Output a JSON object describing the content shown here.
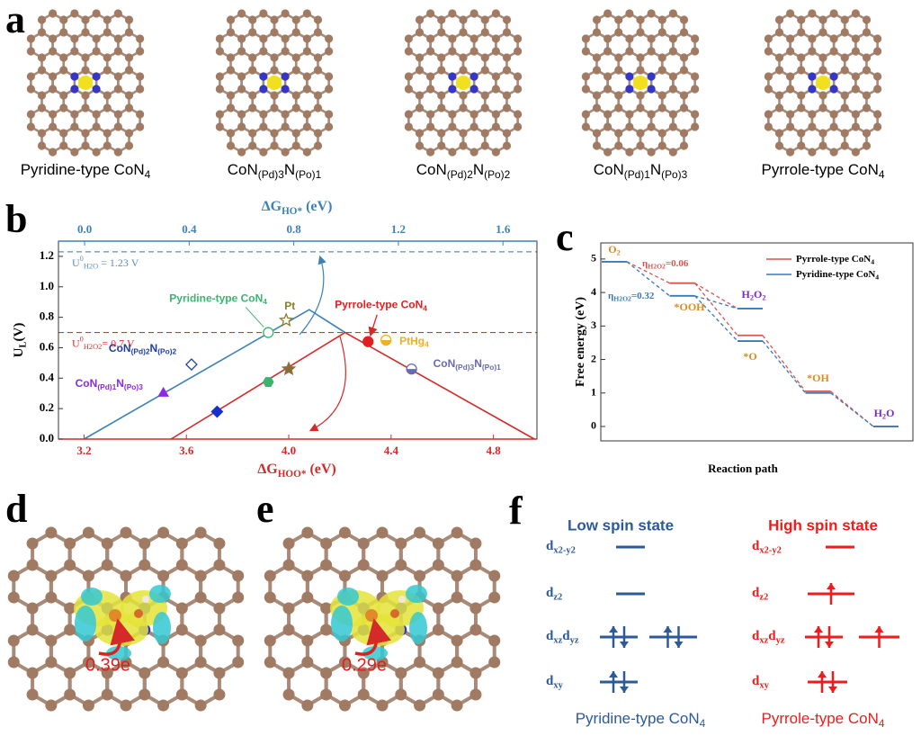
{
  "panel_labels": [
    "a",
    "b",
    "c",
    "d",
    "e",
    "f"
  ],
  "panel_a": {
    "structures": [
      [
        {
          "text": "Pyridine-type CoN"
        },
        {
          "text": "4",
          "sub": true
        }
      ],
      [
        {
          "text": "CoN"
        },
        {
          "text": "(Pd)3",
          "sub": true
        },
        {
          "text": "N"
        },
        {
          "text": "(Po)1",
          "sub": true
        }
      ],
      [
        {
          "text": "CoN"
        },
        {
          "text": "(Pd)2",
          "sub": true
        },
        {
          "text": "N"
        },
        {
          "text": "(Po)2",
          "sub": true
        }
      ],
      [
        {
          "text": "CoN"
        },
        {
          "text": "(Pd)1",
          "sub": true
        },
        {
          "text": "N"
        },
        {
          "text": "(Po)3",
          "sub": true
        }
      ],
      [
        {
          "text": "Pyrrole-type CoN"
        },
        {
          "text": "4",
          "sub": true
        }
      ]
    ]
  },
  "chart_data": [
    {
      "type": "scatter",
      "x_label": [
        {
          "text": "ΔG"
        },
        {
          "text": "HOO*",
          "sub": true
        },
        {
          "text": " (eV)"
        }
      ],
      "x2_label": [
        {
          "text": "ΔG"
        },
        {
          "text": "HO*",
          "sub": true
        },
        {
          "text": " (eV)"
        }
      ],
      "y_label": [
        {
          "text": "U"
        },
        {
          "text": "L",
          "sub": true
        },
        {
          "text": "(V)"
        }
      ],
      "xlim": [
        3.1,
        4.97
      ],
      "xticks": [
        3.2,
        3.6,
        {
          "value": 4,
          "label": "4.0"
        },
        4.4,
        4.8
      ],
      "x2lim": [
        -0.1,
        1.73
      ],
      "x2ticks": [
        {
          "value": 0,
          "label": "0.0"
        },
        0.4,
        0.8,
        1.2,
        1.6
      ],
      "ylim": [
        0,
        1.3
      ],
      "yticks": [
        {
          "value": 0,
          "label": "0.0"
        },
        0.2,
        0.4,
        0.6,
        0.8,
        {
          "value": 1,
          "label": "1.0"
        },
        1.2
      ],
      "lines": [
        {
          "color": "#3d82b5",
          "x": [
            3.2,
            4.08,
            4.22
          ],
          "values": [
            0,
            0.85,
            0.7
          ]
        },
        {
          "color": "#d42a2a",
          "x": [
            3.54,
            4.22,
            4.96
          ],
          "values": [
            0,
            0.7,
            0
          ]
        }
      ],
      "reference_lines": [
        {
          "value": 1.23,
          "color": "#5b8fbf",
          "label": [
            {
              "text": "U"
            },
            {
              "text": "0",
              "sup": true
            },
            {
              "text": "H2O",
              "sub": true
            },
            {
              "text": " = 1.23 V"
            }
          ]
        },
        {
          "value": 0.7,
          "color": "#e03030",
          "label": [
            {
              "text": "U"
            },
            {
              "text": "0",
              "sup": true
            },
            {
              "text": "H2O2",
              "sub": true
            },
            {
              "text": "= 0.7 V"
            }
          ]
        }
      ],
      "points": [
        {
          "label": [
            {
              "text": "Pyridine-type CoN"
            },
            {
              "text": "4",
              "sub": true
            }
          ],
          "x": 3.92,
          "value": 0.7,
          "marker": "circle-open",
          "color": "#3cb371"
        },
        {
          "label": [
            {
              "text": "Pt"
            }
          ],
          "x": 3.99,
          "value": 0.78,
          "marker": "star-open",
          "color": "#8b7d2a"
        },
        {
          "label": [
            {
              "text": "CoN"
            },
            {
              "text": "(Pd)2",
              "sub": true
            },
            {
              "text": "N"
            },
            {
              "text": "(Po)2",
              "sub": true
            }
          ],
          "x": 3.62,
          "value": 0.49,
          "marker": "diamond-open",
          "color": "#1f3fa0"
        },
        {
          "label": [
            {
              "text": "CoN"
            },
            {
              "text": "(Pd)1",
              "sub": true
            },
            {
              "text": "N"
            },
            {
              "text": "(Po)3",
              "sub": true
            }
          ],
          "x": 3.51,
          "value": 0.3,
          "marker": "triangle",
          "color": "#8a2be2"
        },
        {
          "x": 3.72,
          "value": 0.18,
          "marker": "diamond",
          "color": "#1430d0"
        },
        {
          "x": 3.92,
          "value": 0.375,
          "marker": "hexagon",
          "color": "#3cb371"
        },
        {
          "x": 4.0,
          "value": 0.46,
          "marker": "star",
          "color": "#8b6d3a"
        },
        {
          "label": [
            {
              "text": "Pyrrole-type CoN"
            },
            {
              "text": "4",
              "sub": true
            }
          ],
          "x": 4.31,
          "value": 0.64,
          "marker": "circle",
          "color": "#e02020"
        },
        {
          "label": [
            {
              "text": "PtHg"
            },
            {
              "text": "4",
              "sub": true
            }
          ],
          "x": 4.38,
          "value": 0.65,
          "marker": "half",
          "color": "#f0b020"
        },
        {
          "label": [
            {
              "text": "CoN"
            },
            {
              "text": "(Pd)3",
              "sub": true
            },
            {
              "text": "N"
            },
            {
              "text": "(Po)1",
              "sub": true
            }
          ],
          "x": 4.48,
          "value": 0.46,
          "marker": "half",
          "color": "#6a6ab0"
        }
      ]
    },
    {
      "type": "step",
      "x_label": "Reaction path",
      "y_label": "Free energy (eV)",
      "ylim": [
        -0.43,
        5.48
      ],
      "yticks": [
        0,
        1,
        2,
        3,
        4,
        5
      ],
      "categories": [
        [
          {
            "text": "O"
          },
          {
            "text": "2",
            "sub": true
          }
        ],
        [
          {
            "text": "*OOH"
          }
        ],
        [
          {
            "text": "*O"
          }
        ],
        [
          {
            "text": "*OH"
          }
        ],
        [
          {
            "text": "H"
          },
          {
            "text": "2",
            "sub": true
          },
          {
            "text": "O"
          }
        ]
      ],
      "series": [
        {
          "name": [
            {
              "text": "Pyrrole-type CoN"
            },
            {
              "text": "4",
              "sub": true
            }
          ],
          "color": "#d9534f",
          "values": [
            4.92,
            4.28,
            2.72,
            1.05,
            0
          ]
        },
        {
          "name": [
            {
              "text": "Pyridine-type CoN"
            },
            {
              "text": "4",
              "sub": true
            }
          ],
          "color": "#3a78b8",
          "values": [
            4.92,
            3.9,
            2.55,
            1.0,
            0
          ]
        }
      ],
      "h2o2": {
        "label": [
          {
            "text": "H"
          },
          {
            "text": "2",
            "sub": true
          },
          {
            "text": "O"
          },
          {
            "text": "2",
            "sub": true
          }
        ],
        "value": 3.52
      },
      "annotations": [
        [
          {
            "text": "η"
          },
          {
            "text": "H2O2",
            "sub": true
          },
          {
            "text": "=0.06"
          }
        ],
        [
          {
            "text": "η"
          },
          {
            "text": "H2O2",
            "sub": true
          },
          {
            "text": "=0.32"
          }
        ]
      ]
    }
  ],
  "panel_d": {
    "charge": "0.39e"
  },
  "panel_e": {
    "charge": "0.29e"
  },
  "panel_f": {
    "low_title": "Low spin state",
    "high_title": "High spin state",
    "orbitals": [
      [
        {
          "text": "d"
        },
        {
          "text": "x2-y2",
          "sub": true
        }
      ],
      [
        {
          "text": "d"
        },
        {
          "text": "z2",
          "sub": true
        }
      ],
      [
        {
          "text": "d"
        },
        {
          "text": "xz",
          "sub": true
        },
        {
          "text": "d"
        },
        {
          "text": "yz",
          "sub": true
        }
      ],
      [
        {
          "text": "d"
        },
        {
          "text": "xy",
          "sub": true
        }
      ]
    ],
    "low_caption": [
      {
        "text": "Pyridine-type CoN"
      },
      {
        "text": "4",
        "sub": true
      }
    ],
    "high_caption": [
      {
        "text": "Pyrrole-type CoN"
      },
      {
        "text": "4",
        "sub": true
      }
    ]
  }
}
